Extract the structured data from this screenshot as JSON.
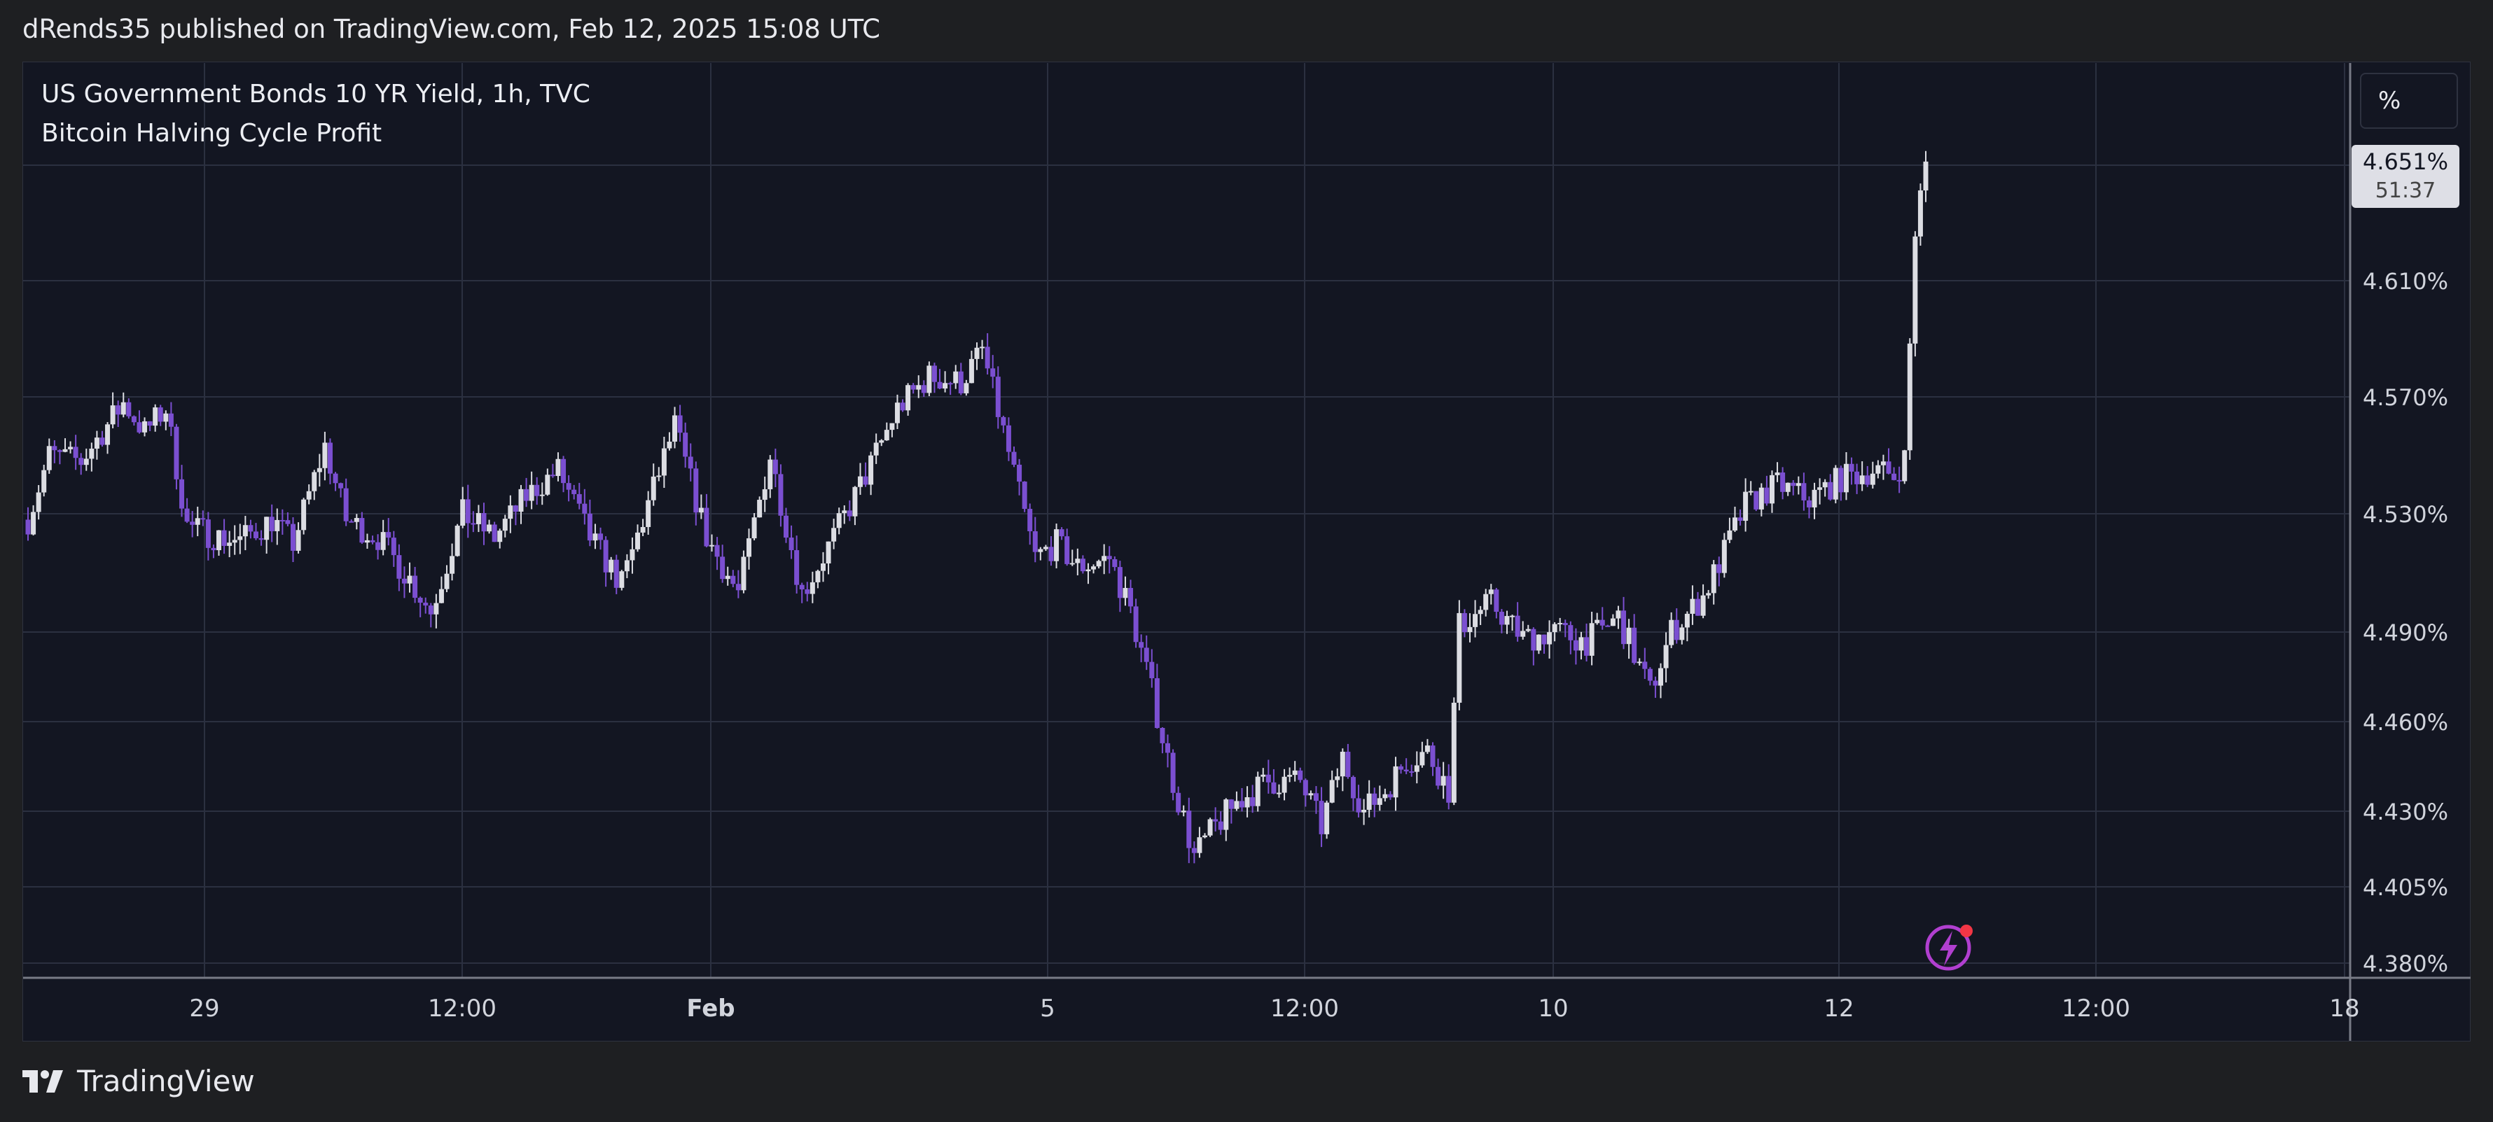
{
  "header": {
    "published": "dRends35 published on TradingView.com, Feb 12, 2025 15:08 UTC"
  },
  "legend": {
    "line1": "US Government Bonds 10 YR Yield, 1h, TVC",
    "line2": "Bitcoin Halving Cycle Profit"
  },
  "scale_button": "%",
  "last_price": {
    "value": "4.651%",
    "countdown": "51:37"
  },
  "footer": {
    "brand": "TradingView"
  },
  "colors": {
    "up": "#dcdde3",
    "down": "#7b4fd1",
    "background": "#131622",
    "grid": "#2b3040"
  },
  "chart_data": {
    "type": "candlestick",
    "title": "US Government Bonds 10 YR Yield, 1h, TVC",
    "subtitle": "Bitcoin Halving Cycle Profit",
    "y_ticks": [
      "4.380%",
      "4.405%",
      "4.430%",
      "4.460%",
      "4.490%",
      "4.530%",
      "4.570%",
      "4.610%"
    ],
    "y_tick_values": [
      4.38,
      4.405,
      4.43,
      4.46,
      4.49,
      4.53,
      4.57,
      4.61
    ],
    "x_ticks": [
      "29",
      "12:00",
      "Feb",
      "5",
      "12:00",
      "10",
      "12",
      "12:00",
      "18"
    ],
    "ylim": [
      4.376,
      4.66
    ],
    "anchors": [
      [
        0,
        4.528
      ],
      [
        4,
        4.55
      ],
      [
        10,
        4.548
      ],
      [
        18,
        4.568
      ],
      [
        22,
        4.558
      ],
      [
        26,
        4.566
      ],
      [
        30,
        4.526
      ],
      [
        36,
        4.522
      ],
      [
        40,
        4.521
      ],
      [
        46,
        4.528
      ],
      [
        50,
        4.52
      ],
      [
        56,
        4.553
      ],
      [
        60,
        4.528
      ],
      [
        66,
        4.522
      ],
      [
        72,
        4.508
      ],
      [
        76,
        4.497
      ],
      [
        82,
        4.53
      ],
      [
        88,
        4.522
      ],
      [
        94,
        4.536
      ],
      [
        100,
        4.545
      ],
      [
        106,
        4.522
      ],
      [
        112,
        4.506
      ],
      [
        116,
        4.528
      ],
      [
        122,
        4.56
      ],
      [
        128,
        4.522
      ],
      [
        134,
        4.503
      ],
      [
        140,
        4.55
      ],
      [
        146,
        4.503
      ],
      [
        152,
        4.522
      ],
      [
        158,
        4.543
      ],
      [
        164,
        4.566
      ],
      [
        170,
        4.577
      ],
      [
        176,
        4.575
      ],
      [
        180,
        4.586
      ],
      [
        184,
        4.558
      ],
      [
        190,
        4.515
      ],
      [
        194,
        4.52
      ],
      [
        198,
        4.512
      ],
      [
        204,
        4.515
      ],
      [
        208,
        4.497
      ],
      [
        212,
        4.47
      ],
      [
        216,
        4.44
      ],
      [
        220,
        4.415
      ],
      [
        224,
        4.425
      ],
      [
        228,
        4.433
      ],
      [
        234,
        4.44
      ],
      [
        240,
        4.44
      ],
      [
        244,
        4.425
      ],
      [
        248,
        4.448
      ],
      [
        252,
        4.43
      ],
      [
        256,
        4.437
      ],
      [
        260,
        4.447
      ],
      [
        264,
        4.45
      ],
      [
        268,
        4.437
      ],
      [
        270,
        4.492
      ],
      [
        276,
        4.5
      ],
      [
        282,
        4.488
      ],
      [
        288,
        4.49
      ],
      [
        294,
        4.487
      ],
      [
        300,
        4.495
      ],
      [
        306,
        4.47
      ],
      [
        310,
        4.49
      ],
      [
        316,
        4.502
      ],
      [
        320,
        4.517
      ],
      [
        324,
        4.533
      ],
      [
        330,
        4.54
      ],
      [
        336,
        4.535
      ],
      [
        342,
        4.542
      ],
      [
        348,
        4.545
      ],
      [
        352,
        4.543
      ],
      [
        354,
        4.549
      ],
      [
        356,
        4.627
      ],
      [
        358,
        4.651
      ]
    ],
    "last_value": 4.651
  }
}
